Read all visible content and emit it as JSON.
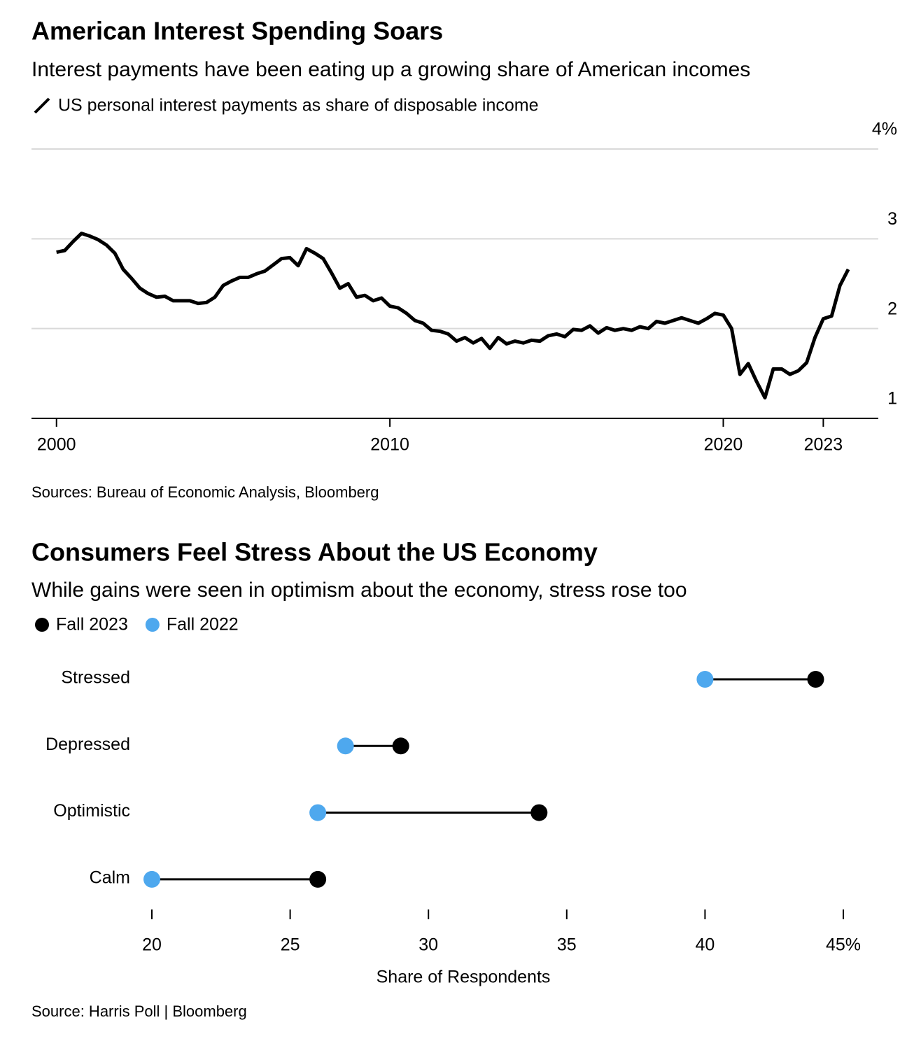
{
  "chart_data": [
    {
      "type": "line",
      "title": "American Interest Spending Soars",
      "subtitle": "Interest payments have been eating up a growing share of American incomes",
      "source": "Sources: Bureau of Economic Analysis, Bloomberg",
      "x": [
        2000.0,
        2000.25,
        2000.5,
        2000.75,
        2001.0,
        2001.25,
        2001.5,
        2001.75,
        2002.0,
        2002.25,
        2002.5,
        2002.75,
        2003.0,
        2003.25,
        2003.5,
        2003.75,
        2004.0,
        2004.25,
        2004.5,
        2004.75,
        2005.0,
        2005.25,
        2005.5,
        2005.75,
        2006.0,
        2006.25,
        2006.5,
        2006.75,
        2007.0,
        2007.25,
        2007.5,
        2007.75,
        2008.0,
        2008.25,
        2008.5,
        2008.75,
        2009.0,
        2009.25,
        2009.5,
        2009.75,
        2010.0,
        2010.25,
        2010.5,
        2010.75,
        2011.0,
        2011.25,
        2011.5,
        2011.75,
        2012.0,
        2012.25,
        2012.5,
        2012.75,
        2013.0,
        2013.25,
        2013.5,
        2013.75,
        2014.0,
        2014.25,
        2014.5,
        2014.75,
        2015.0,
        2015.25,
        2015.5,
        2015.75,
        2016.0,
        2016.25,
        2016.5,
        2016.75,
        2017.0,
        2017.25,
        2017.5,
        2017.75,
        2018.0,
        2018.25,
        2018.5,
        2018.75,
        2019.0,
        2019.25,
        2019.5,
        2019.75,
        2020.0,
        2020.25,
        2020.5,
        2020.75,
        2021.0,
        2021.25,
        2021.5,
        2021.75,
        2022.0,
        2022.25,
        2022.5,
        2022.75,
        2023.0,
        2023.25,
        2023.5,
        2023.75
      ],
      "series": [
        {
          "name": "US personal interest payments as share of disposable income",
          "color": "#000000",
          "values": [
            2.85,
            2.87,
            2.97,
            3.06,
            3.03,
            2.99,
            2.93,
            2.84,
            2.66,
            2.56,
            2.45,
            2.39,
            2.35,
            2.36,
            2.31,
            2.31,
            2.31,
            2.28,
            2.29,
            2.35,
            2.48,
            2.53,
            2.57,
            2.57,
            2.61,
            2.64,
            2.71,
            2.78,
            2.79,
            2.7,
            2.89,
            2.84,
            2.78,
            2.62,
            2.45,
            2.5,
            2.35,
            2.37,
            2.31,
            2.34,
            2.25,
            2.23,
            2.17,
            2.09,
            2.06,
            1.98,
            1.97,
            1.94,
            1.86,
            1.9,
            1.84,
            1.89,
            1.78,
            1.9,
            1.83,
            1.86,
            1.84,
            1.87,
            1.86,
            1.92,
            1.94,
            1.91,
            1.99,
            1.98,
            2.03,
            1.95,
            2.01,
            1.98,
            2.0,
            1.98,
            2.02,
            2.0,
            2.08,
            2.06,
            2.09,
            2.12,
            2.09,
            2.06,
            2.11,
            2.17,
            2.15,
            2.0,
            1.49,
            1.61,
            1.41,
            1.23,
            1.55,
            1.55,
            1.49,
            1.53,
            1.62,
            1.9,
            2.11,
            2.14,
            2.48,
            2.66
          ]
        }
      ],
      "xlim": [
        1999.25,
        2024.65
      ],
      "xticks": [
        2000,
        2010,
        2020,
        2023
      ],
      "ylim": [
        1,
        4
      ],
      "yticks": [
        1,
        2,
        3,
        {
          "value": 4,
          "label": "4%"
        }
      ],
      "grid": true
    },
    {
      "type": "dumbbell",
      "title": "Consumers Feel Stress About the US Economy",
      "subtitle": "While gains were seen in optimism about the economy, stress rose too",
      "source": "Source: Harris Poll | Bloomberg",
      "xlabel": "Share of Respondents",
      "categories": [
        "Stressed",
        "Depressed",
        "Optimistic",
        "Calm"
      ],
      "series": [
        {
          "name": "Fall 2023",
          "color": "#000000",
          "values": [
            44,
            29,
            34,
            26
          ]
        },
        {
          "name": "Fall 2022",
          "color": "#4ea8ee",
          "values": [
            40,
            27,
            26,
            20
          ]
        }
      ],
      "xlim": [
        20,
        45
      ],
      "xticks": [
        20,
        25,
        30,
        35,
        40,
        {
          "value": 45,
          "label": "45%"
        }
      ]
    }
  ]
}
